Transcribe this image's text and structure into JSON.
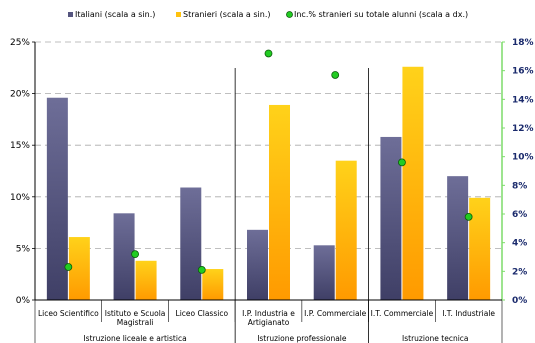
{
  "chart_data": {
    "type": "bar",
    "legend": [
      {
        "label": "Italiani (scala a sin.)",
        "color": "#55557f",
        "marker": "square"
      },
      {
        "label": "Stranieri (scala a sin.)",
        "color": "#ffc20e",
        "marker": "square"
      },
      {
        "label": "Inc.% stranieri su totale alunni (scala a dx.)",
        "color": "#22cc22",
        "marker": "circle"
      }
    ],
    "legend_position": "top",
    "categories": [
      [
        "Liceo Scientifico"
      ],
      [
        "Istituto e Scuola",
        "Magistrali"
      ],
      [
        "Liceo Classico"
      ],
      [
        "I.P. Industria e",
        "Artigianato"
      ],
      [
        "I.P. Commerciale"
      ],
      [
        "I.T. Commerciale"
      ],
      [
        "I.T. Industriale"
      ]
    ],
    "groups": [
      {
        "label": "Istruzione liceale e artistica",
        "start": 0,
        "end": 2
      },
      {
        "label": "Istruzione professionale",
        "start": 3,
        "end": 4
      },
      {
        "label": "Istruzione tecnica",
        "start": 5,
        "end": 6
      }
    ],
    "series": [
      {
        "name": "Italiani (scala a sin.)",
        "axis": "left",
        "kind": "bar",
        "values": [
          19.6,
          8.4,
          10.9,
          6.8,
          5.3,
          15.8,
          12.0
        ]
      },
      {
        "name": "Stranieri (scala a sin.)",
        "axis": "left",
        "kind": "bar",
        "values": [
          6.1,
          3.8,
          3.0,
          18.9,
          13.5,
          22.6,
          9.9
        ]
      },
      {
        "name": "Inc.% stranieri su totale alunni (scala a dx.)",
        "axis": "right",
        "kind": "point",
        "values": [
          2.3,
          3.2,
          2.1,
          17.2,
          15.7,
          9.6,
          5.8
        ]
      }
    ],
    "y_left": {
      "min": 0,
      "max": 25,
      "step": 5,
      "ticks": [
        "0%",
        "5%",
        "10%",
        "15%",
        "20%",
        "25%"
      ]
    },
    "y_right": {
      "min": 0,
      "max": 18,
      "step": 2,
      "ticks": [
        "0%",
        "2%",
        "4%",
        "6%",
        "8%",
        "10%",
        "12%",
        "14%",
        "16%",
        "18%"
      ]
    },
    "grid": "dashed-horizontal",
    "colors": {
      "left_axis": "#000000",
      "right_axis": "#7ddc6a",
      "right_tick_text": "#1a2a6c",
      "grid": "#aaaaaa",
      "point_fill": "#22cc22",
      "point_stroke": "#0a5a0a"
    }
  }
}
